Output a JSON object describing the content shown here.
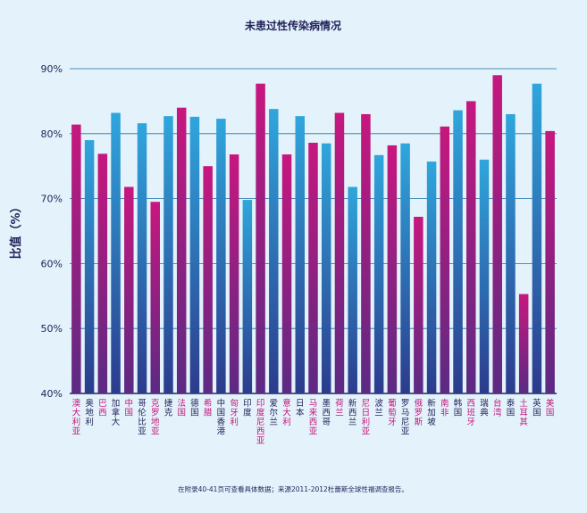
{
  "chart_data": {
    "type": "bar",
    "title": "未患过性传染病情况",
    "ylabel": "比值（%）",
    "ylim": [
      40,
      90
    ],
    "yticks": [
      "40%",
      "50%",
      "60%",
      "70%",
      "80%",
      "90%"
    ],
    "grid": true,
    "categories": [
      "澳大利亚",
      "奥地利",
      "巴西",
      "加拿大",
      "中国",
      "哥伦比亚",
      "克罗地亚",
      "捷克",
      "法国",
      "德国",
      "希腊",
      "中国香港",
      "匈牙利",
      "印度",
      "印度尼西亚",
      "爱尔兰",
      "意大利",
      "日本",
      "马来西亚",
      "墨西哥",
      "荷兰",
      "新西兰",
      "尼日利亚",
      "波兰",
      "葡萄牙",
      "罗马尼亚",
      "俄罗斯",
      "新加坡",
      "南非",
      "韩国",
      "西班牙",
      "瑞典",
      "台湾",
      "泰国",
      "土耳其",
      "英国",
      "美国"
    ],
    "values": [
      81.4,
      79.0,
      76.9,
      83.2,
      71.8,
      81.6,
      69.5,
      82.7,
      84.0,
      82.6,
      75.0,
      82.3,
      76.8,
      69.8,
      87.7,
      83.8,
      76.8,
      82.7,
      78.6,
      78.5,
      83.2,
      71.8,
      83.0,
      76.7,
      78.2,
      78.5,
      67.2,
      75.7,
      81.1,
      83.6,
      85.0,
      76.0,
      89.0,
      83.0,
      55.3,
      87.7,
      80.4
    ],
    "colors": [
      "magenta",
      "blue",
      "magenta",
      "blue",
      "magenta",
      "blue",
      "magenta",
      "blue",
      "magenta",
      "blue",
      "magenta",
      "blue",
      "magenta",
      "blue",
      "magenta",
      "blue",
      "magenta",
      "blue",
      "magenta",
      "blue",
      "magenta",
      "blue",
      "magenta",
      "blue",
      "magenta",
      "blue",
      "magenta",
      "blue",
      "magenta",
      "blue",
      "magenta",
      "blue",
      "magenta",
      "blue",
      "magenta",
      "blue",
      "magenta"
    ],
    "palette": {
      "magenta_top": "#c7177e",
      "magenta_bottom": "#5b2a83",
      "blue_top": "#2fa6dc",
      "blue_bottom": "#2c3b8c",
      "magenta_label": "#c4167a",
      "blue_label": "#23235a",
      "grid": "#1b6fa8",
      "axis": "#23235a"
    },
    "footnote": "在附录40-41页可查看具体数据；来源2011-2012杜蕾斯全球性福调查报告。"
  }
}
